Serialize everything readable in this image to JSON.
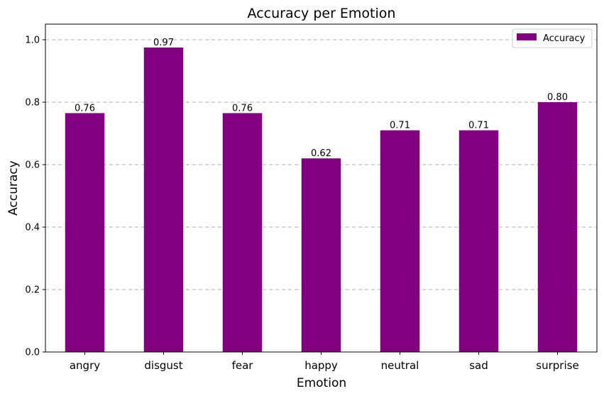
{
  "chart_data": {
    "type": "bar",
    "title": "Accuracy per Emotion",
    "xlabel": "Emotion",
    "ylabel": "Accuracy",
    "categories": [
      "angry",
      "disgust",
      "fear",
      "happy",
      "neutral",
      "sad",
      "surprise"
    ],
    "series": [
      {
        "name": "Accuracy",
        "values": [
          0.765,
          0.975,
          0.765,
          0.62,
          0.71,
          0.71,
          0.8
        ],
        "labels": [
          "0.76",
          "0.97",
          "0.76",
          "0.62",
          "0.71",
          "0.71",
          "0.80"
        ],
        "color": "#800080"
      }
    ],
    "ylim": [
      0,
      1.05
    ],
    "yticks": [
      "0.0",
      "0.2",
      "0.4",
      "0.6",
      "0.8",
      "1.0"
    ],
    "grid": "y-dashed",
    "legend_position": "top-right"
  }
}
